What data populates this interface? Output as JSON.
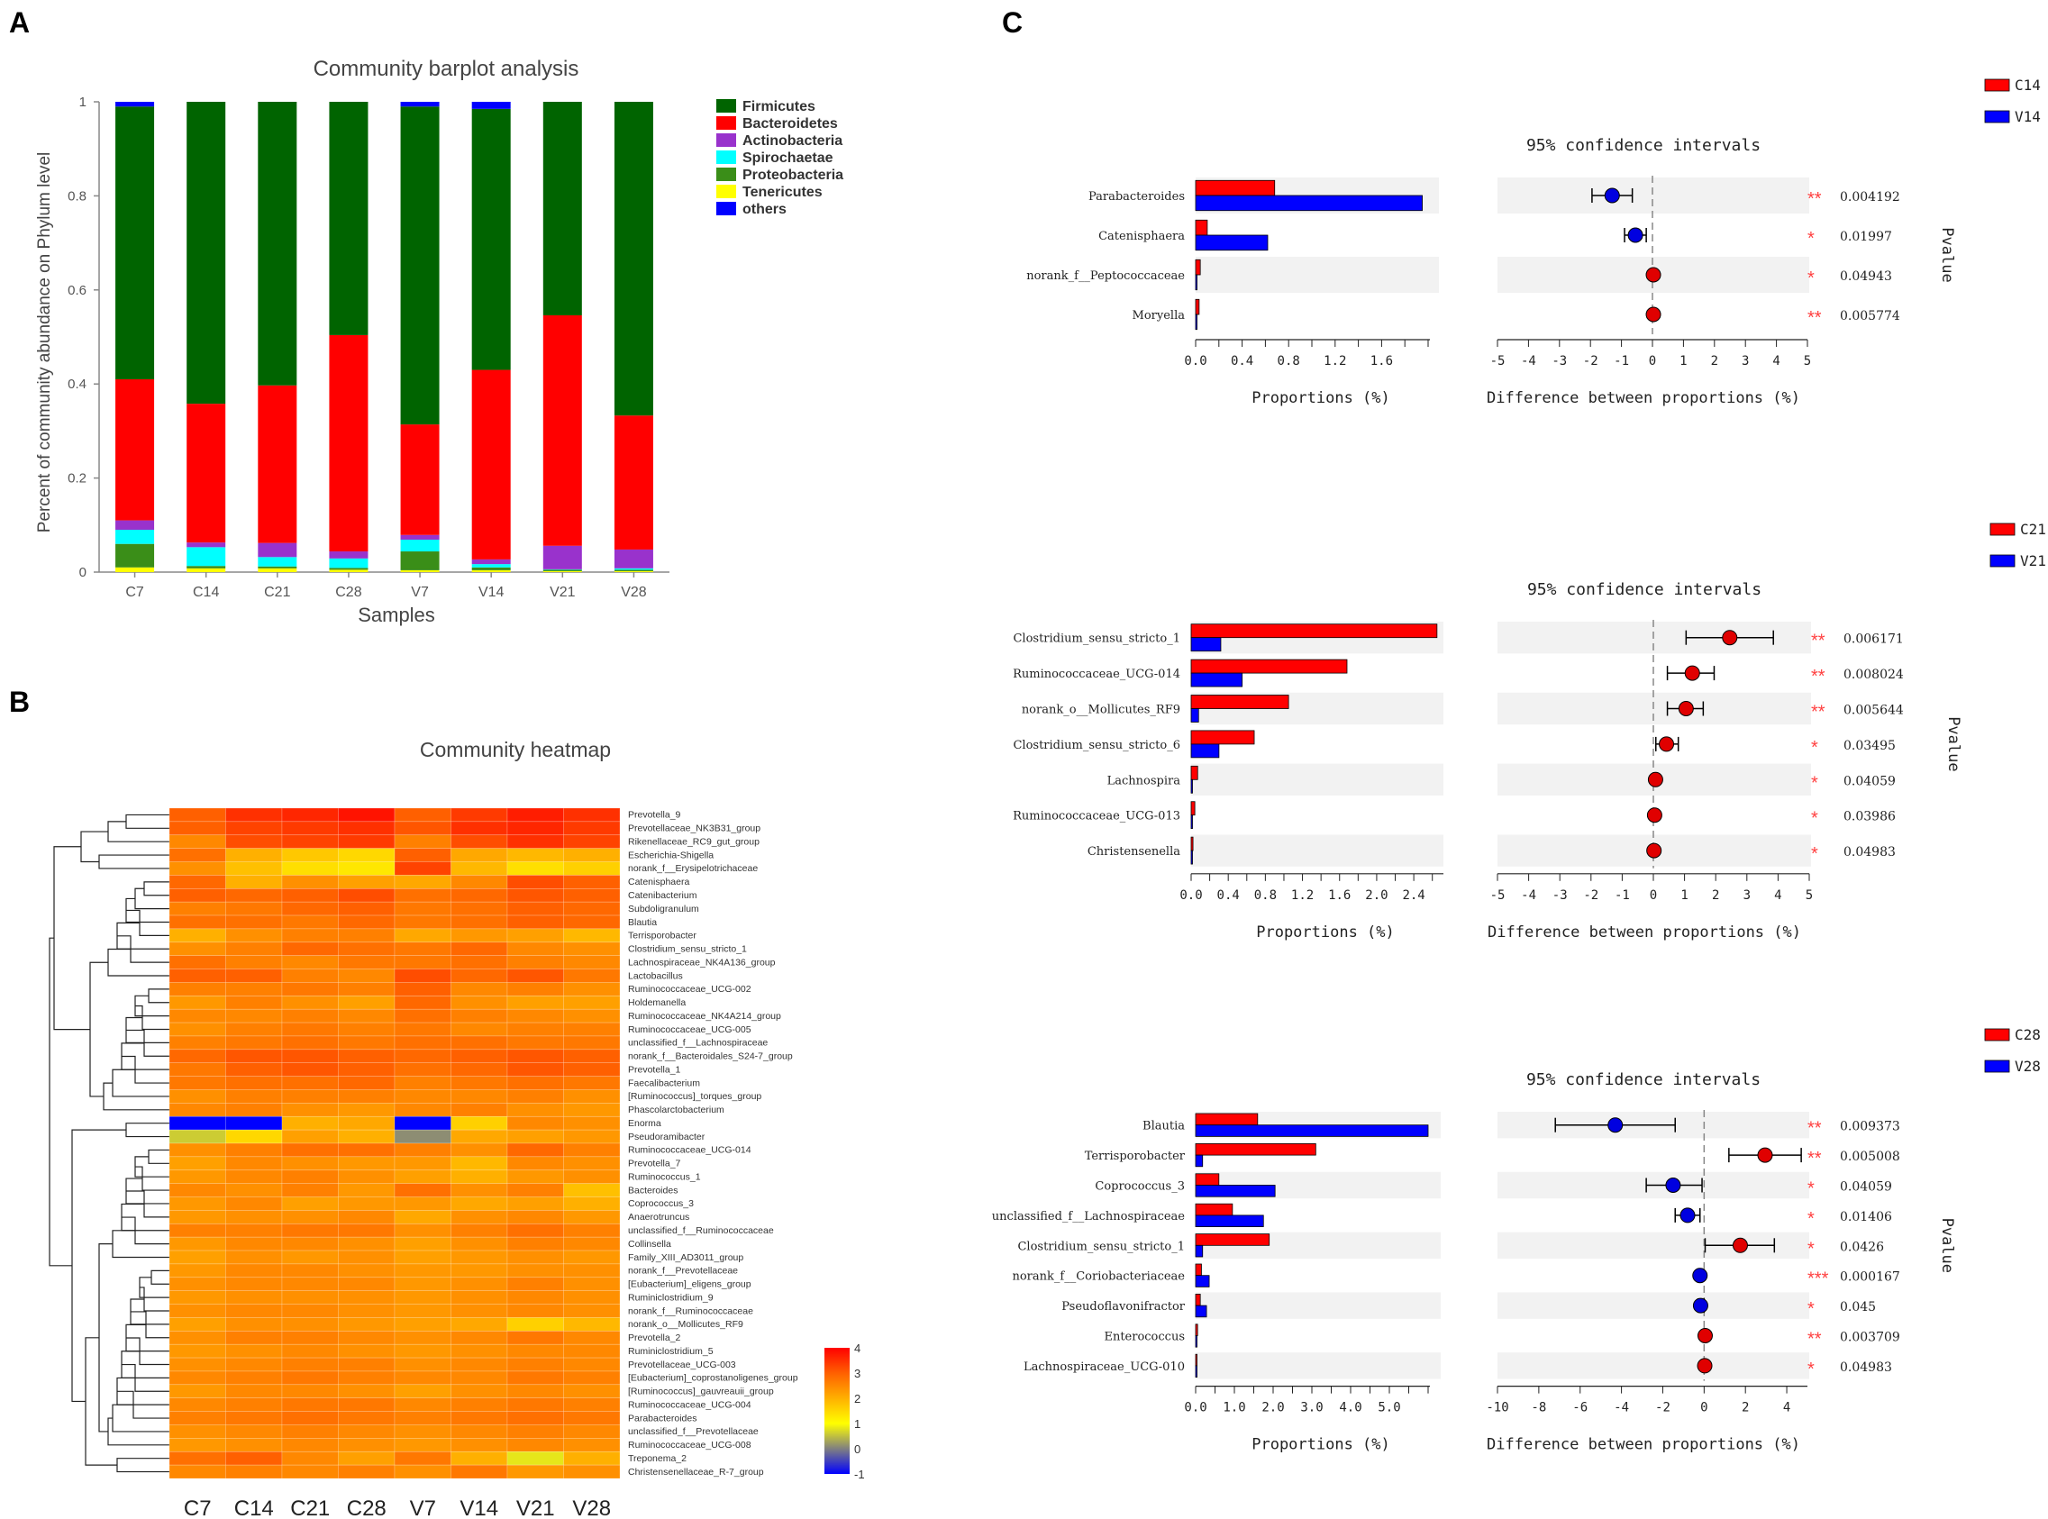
{
  "panel_labels": {
    "a": "A",
    "b": "B",
    "c": "C"
  },
  "colors": {
    "firmicutes": "#006400",
    "bacteroidetes": "#FF0000",
    "actinobacteria": "#9932CC",
    "spirochaetae": "#00FFFF",
    "proteobacteria": "#3A8E18",
    "tenericutes": "#FFFF00",
    "others": "#0000FF",
    "red": "#FF0000",
    "blue": "#0000FF",
    "axis": "#888888"
  },
  "chart_data": [
    {
      "type": "bar",
      "id": "barplot",
      "title": "Community barplot analysis",
      "xlabel": "Samples",
      "ylabel": "Percent of community abundance on Phylum level",
      "ylim": [
        0,
        1
      ],
      "yticks": [
        "0",
        "0.2",
        "0.4",
        "0.6",
        "0.8",
        "1"
      ],
      "categories": [
        "C7",
        "C14",
        "C21",
        "C28",
        "V7",
        "V14",
        "V21",
        "V28"
      ],
      "series": [
        {
          "name": "Tenericutes",
          "color": "#FFFF00",
          "values": [
            0.01,
            0.008,
            0.008,
            0.005,
            0.004,
            0.004,
            0.002,
            0.002
          ]
        },
        {
          "name": "Proteobacteria",
          "color": "#3A8E18",
          "values": [
            0.05,
            0.005,
            0.004,
            0.004,
            0.04,
            0.006,
            0.003,
            0.003
          ]
        },
        {
          "name": "Spirochaetae",
          "color": "#00FFFF",
          "values": [
            0.03,
            0.04,
            0.02,
            0.02,
            0.025,
            0.007,
            0.001,
            0.003
          ]
        },
        {
          "name": "Actinobacteria",
          "color": "#9932CC",
          "values": [
            0.02,
            0.01,
            0.03,
            0.015,
            0.01,
            0.01,
            0.05,
            0.04
          ]
        },
        {
          "name": "Bacteroidetes",
          "color": "#FF0000",
          "values": [
            0.3,
            0.295,
            0.335,
            0.46,
            0.235,
            0.403,
            0.49,
            0.285
          ]
        },
        {
          "name": "Firmicutes",
          "color": "#006400",
          "values": [
            0.58,
            0.642,
            0.603,
            0.496,
            0.676,
            0.555,
            0.454,
            0.667
          ]
        },
        {
          "name": "others",
          "color": "#0000FF",
          "values": [
            0.01,
            0.0,
            0.0,
            0.0,
            0.01,
            0.015,
            0.0,
            0.0
          ]
        }
      ],
      "legend": [
        "Firmicutes",
        "Bacteroidetes",
        "Actinobacteria",
        "Spirochaetae",
        "Proteobacteria",
        "Tenericutes",
        "others"
      ]
    },
    {
      "type": "heatmap",
      "id": "heatmap",
      "title": "Community heatmap",
      "columns": [
        "C7",
        "C14",
        "C21",
        "C28",
        "V7",
        "V14",
        "V21",
        "V28"
      ],
      "rows": [
        "Prevotella_9",
        "Prevotellaceae_NK3B31_group",
        "Rikenellaceae_RC9_gut_group",
        "Escherichia-Shigella",
        "norank_f__Erysipelotrichaceae",
        "Catenisphaera",
        "Catenibacterium",
        "Subdoligranulum",
        "Blautia",
        "Terrisporobacter",
        "Clostridium_sensu_stricto_1",
        "Lachnospiraceae_NK4A136_group",
        "Lactobacillus",
        "Ruminococcaceae_UCG-002",
        "Holdemanella",
        "Ruminococcaceae_NK4A214_group",
        "Ruminococcaceae_UCG-005",
        "unclassified_f__Lachnospiraceae",
        "norank_f__Bacteroidales_S24-7_group",
        "Prevotella_1",
        "Faecalibacterium",
        "[Ruminococcus]_torques_group",
        "Phascolarctobacterium",
        "Enorma",
        "Pseudoramibacter",
        "Ruminococcaceae_UCG-014",
        "Prevotella_7",
        "Ruminococcus_1",
        "Bacteroides",
        "Coprococcus_3",
        "Anaerotruncus",
        "unclassified_f__Ruminococcaceae",
        "Collinsella",
        "Family_XIII_AD3011_group",
        "norank_f__Prevotellaceae",
        "[Eubacterium]_eligens_group",
        "Ruminiclostridium_9",
        "norank_f__Ruminococcaceae",
        "norank_o__Mollicutes_RF9",
        "Prevotella_2",
        "Ruminiclostridium_5",
        "Prevotellaceae_UCG-003",
        "[Eubacterium]_coprostanoligenes_group",
        "[Ruminococcus]_gauvreauii_group",
        "Ruminococcaceae_UCG-004",
        "Parabacteroides",
        "unclassified_f__Prevotellaceae",
        "Ruminococcaceae_UCG-008",
        "Treponema_2",
        "Christensenellaceae_R-7_group"
      ],
      "values": [
        [
          3.0,
          3.5,
          3.6,
          3.8,
          3.0,
          3.4,
          3.7,
          3.5
        ],
        [
          3.0,
          3.3,
          3.4,
          3.5,
          3.1,
          3.5,
          3.6,
          3.4
        ],
        [
          2.5,
          3.2,
          3.3,
          3.4,
          2.6,
          3.2,
          3.5,
          3.3
        ],
        [
          2.8,
          2.0,
          1.7,
          1.5,
          3.0,
          2.1,
          1.9,
          2.0
        ],
        [
          2.4,
          1.8,
          1.4,
          1.3,
          3.3,
          1.9,
          1.4,
          1.6
        ],
        [
          2.9,
          2.0,
          2.4,
          2.2,
          2.1,
          2.5,
          3.2,
          3.0
        ],
        [
          3.0,
          2.9,
          3.0,
          3.2,
          2.8,
          2.9,
          3.1,
          3.0
        ],
        [
          2.6,
          2.7,
          2.9,
          3.0,
          2.7,
          2.8,
          3.0,
          2.9
        ],
        [
          2.8,
          2.8,
          2.7,
          2.9,
          2.7,
          2.8,
          3.0,
          2.9
        ],
        [
          2.0,
          2.4,
          2.6,
          2.6,
          2.1,
          2.3,
          2.2,
          1.9
        ],
        [
          2.4,
          2.6,
          2.9,
          2.8,
          2.7,
          2.9,
          2.5,
          2.4
        ],
        [
          2.8,
          2.6,
          2.5,
          2.7,
          2.7,
          2.8,
          2.6,
          2.5
        ],
        [
          3.0,
          3.0,
          2.6,
          2.5,
          3.2,
          2.9,
          3.1,
          2.7
        ],
        [
          2.6,
          2.6,
          2.7,
          2.6,
          3.0,
          2.5,
          2.6,
          2.4
        ],
        [
          2.3,
          2.6,
          2.4,
          2.2,
          2.9,
          2.4,
          2.2,
          2.2
        ],
        [
          2.5,
          2.5,
          2.6,
          2.5,
          2.8,
          2.6,
          2.5,
          2.4
        ],
        [
          2.4,
          2.6,
          2.7,
          2.6,
          2.7,
          2.5,
          2.6,
          2.6
        ],
        [
          2.6,
          2.7,
          2.8,
          2.7,
          2.8,
          2.8,
          2.7,
          2.7
        ],
        [
          2.9,
          3.1,
          3.1,
          3.0,
          2.9,
          3.0,
          3.1,
          3.0
        ],
        [
          2.7,
          3.0,
          3.1,
          3.0,
          2.8,
          2.9,
          3.1,
          3.0
        ],
        [
          2.7,
          2.8,
          2.8,
          2.9,
          2.6,
          2.7,
          2.8,
          2.7
        ],
        [
          2.4,
          2.6,
          2.6,
          2.6,
          2.5,
          2.5,
          2.6,
          2.4
        ],
        [
          2.5,
          2.6,
          2.4,
          2.3,
          2.5,
          2.6,
          2.4,
          2.3
        ],
        [
          -1.0,
          -1.0,
          2.0,
          2.1,
          -1.0,
          1.6,
          2.5,
          2.4
        ],
        [
          0.6,
          1.5,
          2.2,
          2.0,
          0.1,
          2.1,
          2.2,
          2.3
        ],
        [
          2.4,
          2.6,
          2.8,
          2.8,
          2.6,
          2.4,
          2.9,
          2.6
        ],
        [
          2.2,
          2.5,
          2.4,
          2.3,
          2.3,
          1.9,
          2.5,
          2.4
        ],
        [
          2.3,
          2.5,
          2.6,
          2.4,
          2.2,
          2.0,
          2.3,
          2.4
        ],
        [
          2.5,
          2.4,
          2.6,
          2.3,
          2.8,
          2.4,
          2.6,
          1.8
        ],
        [
          2.3,
          2.5,
          2.2,
          2.3,
          2.3,
          2.1,
          2.2,
          2.0
        ],
        [
          2.3,
          2.4,
          2.4,
          2.5,
          2.1,
          2.4,
          2.5,
          2.3
        ],
        [
          2.6,
          2.6,
          2.7,
          2.7,
          2.4,
          2.6,
          2.8,
          2.6
        ],
        [
          2.3,
          2.5,
          2.5,
          2.4,
          2.2,
          2.4,
          2.6,
          2.5
        ],
        [
          2.2,
          2.4,
          2.3,
          2.4,
          2.2,
          2.3,
          2.4,
          2.3
        ],
        [
          2.3,
          2.5,
          2.5,
          2.4,
          2.3,
          2.3,
          2.4,
          2.4
        ],
        [
          2.4,
          2.5,
          2.5,
          2.5,
          2.3,
          2.4,
          2.6,
          2.4
        ],
        [
          2.3,
          2.4,
          2.4,
          2.4,
          2.3,
          2.4,
          2.5,
          2.4
        ],
        [
          2.4,
          2.5,
          2.5,
          2.4,
          2.3,
          2.4,
          2.5,
          2.4
        ],
        [
          2.2,
          2.4,
          2.4,
          2.3,
          2.2,
          2.1,
          1.6,
          1.9
        ],
        [
          2.4,
          2.6,
          2.6,
          2.5,
          2.4,
          2.5,
          2.7,
          2.5
        ],
        [
          2.3,
          2.4,
          2.5,
          2.4,
          2.3,
          2.4,
          2.5,
          2.5
        ],
        [
          2.4,
          2.5,
          2.6,
          2.6,
          2.4,
          2.5,
          2.6,
          2.5
        ],
        [
          2.5,
          2.6,
          2.7,
          2.6,
          2.5,
          2.5,
          2.7,
          2.6
        ],
        [
          2.3,
          2.5,
          2.5,
          2.4,
          2.2,
          2.4,
          2.5,
          2.4
        ],
        [
          2.5,
          2.6,
          2.7,
          2.7,
          2.5,
          2.6,
          2.7,
          2.6
        ],
        [
          2.6,
          2.7,
          2.8,
          2.7,
          2.6,
          2.7,
          2.8,
          2.7
        ],
        [
          2.4,
          2.5,
          2.6,
          2.5,
          2.4,
          2.5,
          2.6,
          2.5
        ],
        [
          2.3,
          2.4,
          2.5,
          2.4,
          2.3,
          2.4,
          2.5,
          2.4
        ],
        [
          2.8,
          3.0,
          2.5,
          2.2,
          2.7,
          2.0,
          0.8,
          2.0
        ],
        [
          2.5,
          2.6,
          2.5,
          2.6,
          2.4,
          2.7,
          2.3,
          2.4
        ]
      ],
      "colorbar": {
        "min": -1,
        "max": 4,
        "ticks": [
          "4",
          "3",
          "2",
          "1",
          "0",
          "-1"
        ]
      }
    },
    {
      "type": "extended_error_bar",
      "id": "c14",
      "legend": [
        "C14",
        "V14"
      ],
      "ci_title": "95% confidence intervals",
      "xlabel_left": "Proportions (%)",
      "xlabel_right": "Difference between proportions (%)",
      "pvalue_label": "Pvalue",
      "prop_max": 2.0,
      "prop_ticks": [
        "0.0",
        "0.4",
        "0.8",
        "1.2",
        "1.6"
      ],
      "diff_range": [
        -5,
        5
      ],
      "diff_ticks": [
        "-5",
        "-4",
        "-3",
        "-2",
        "-1",
        "0",
        "1",
        "2",
        "3",
        "4",
        "5"
      ],
      "rows": [
        {
          "taxon": "Parabacteroides",
          "group1": 0.68,
          "group2": 1.95,
          "diff": -1.3,
          "ci_low": -1.95,
          "ci_high": -0.65,
          "stars": "**",
          "p": "0.004192"
        },
        {
          "taxon": "Catenisphaera",
          "group1": 0.1,
          "group2": 0.62,
          "diff": -0.55,
          "ci_low": -0.9,
          "ci_high": -0.2,
          "stars": "*",
          "p": "0.01997"
        },
        {
          "taxon": "norank_f__Peptococcaceae",
          "group1": 0.04,
          "group2": 0.01,
          "diff": 0.03,
          "ci_low": 0.0,
          "ci_high": 0.06,
          "stars": "*",
          "p": "0.04943"
        },
        {
          "taxon": "Moryella",
          "group1": 0.03,
          "group2": 0.005,
          "diff": 0.03,
          "ci_low": 0.01,
          "ci_high": 0.05,
          "stars": "**",
          "p": "0.005774"
        }
      ]
    },
    {
      "type": "extended_error_bar",
      "id": "c21",
      "legend": [
        "C21",
        "V21"
      ],
      "ci_title": "95% confidence intervals",
      "xlabel_left": "Proportions (%)",
      "xlabel_right": "Difference between proportions (%)",
      "pvalue_label": "Pvalue",
      "prop_max": 2.7,
      "prop_ticks": [
        "0.0",
        "0.4",
        "0.8",
        "1.2",
        "1.6",
        "2.0",
        "2.4"
      ],
      "diff_range": [
        -5,
        5
      ],
      "diff_ticks": [
        "-5",
        "-4",
        "-3",
        "-2",
        "-1",
        "0",
        "1",
        "2",
        "3",
        "4",
        "5"
      ],
      "rows": [
        {
          "taxon": "Clostridium_sensu_stricto_1",
          "group1": 2.65,
          "group2": 0.32,
          "diff": 2.45,
          "ci_low": 1.05,
          "ci_high": 3.85,
          "stars": "**",
          "p": "0.006171"
        },
        {
          "taxon": "Ruminococcaceae_UCG-014",
          "group1": 1.68,
          "group2": 0.55,
          "diff": 1.25,
          "ci_low": 0.45,
          "ci_high": 1.95,
          "stars": "**",
          "p": "0.008024"
        },
        {
          "taxon": "norank_o__Mollicutes_RF9",
          "group1": 1.05,
          "group2": 0.08,
          "diff": 1.05,
          "ci_low": 0.45,
          "ci_high": 1.6,
          "stars": "**",
          "p": "0.005644"
        },
        {
          "taxon": "Clostridium_sensu_stricto_6",
          "group1": 0.68,
          "group2": 0.3,
          "diff": 0.42,
          "ci_low": 0.08,
          "ci_high": 0.8,
          "stars": "*",
          "p": "0.03495"
        },
        {
          "taxon": "Lachnospira",
          "group1": 0.07,
          "group2": 0.01,
          "diff": 0.07,
          "ci_low": 0.0,
          "ci_high": 0.13,
          "stars": "*",
          "p": "0.04059"
        },
        {
          "taxon": "Ruminococcaceae_UCG-013",
          "group1": 0.04,
          "group2": 0.01,
          "diff": 0.04,
          "ci_low": 0.0,
          "ci_high": 0.08,
          "stars": "*",
          "p": "0.03986"
        },
        {
          "taxon": "Christensenella",
          "group1": 0.02,
          "group2": 0.005,
          "diff": 0.02,
          "ci_low": 0.0,
          "ci_high": 0.04,
          "stars": "*",
          "p": "0.04983"
        }
      ]
    },
    {
      "type": "extended_error_bar",
      "id": "c28",
      "legend": [
        "C28",
        "V28"
      ],
      "ci_title": "95% confidence intervals",
      "xlabel_left": "Proportions (%)",
      "xlabel_right": "Difference between proportions (%)",
      "pvalue_label": "Pvalue",
      "prop_max": 6.0,
      "prop_ticks": [
        "0.0",
        "1.0",
        "2.0",
        "3.0",
        "4.0",
        "5.0"
      ],
      "diff_range": [
        -10,
        5
      ],
      "diff_ticks": [
        "-10",
        "-8",
        "-6",
        "-4",
        "-2",
        "0",
        "2",
        "4"
      ],
      "rows": [
        {
          "taxon": "Blautia",
          "group1": 1.6,
          "group2": 6.0,
          "diff": -4.3,
          "ci_low": -7.2,
          "ci_high": -1.4,
          "stars": "**",
          "p": "0.009373"
        },
        {
          "taxon": "Terrisporobacter",
          "group1": 3.1,
          "group2": 0.18,
          "diff": 2.95,
          "ci_low": 1.2,
          "ci_high": 4.7,
          "stars": "**",
          "p": "0.005008"
        },
        {
          "taxon": "Coprococcus_3",
          "group1": 0.6,
          "group2": 2.05,
          "diff": -1.5,
          "ci_low": -2.8,
          "ci_high": -0.1,
          "stars": "*",
          "p": "0.04059"
        },
        {
          "taxon": "unclassified_f__Lachnospiraceae",
          "group1": 0.95,
          "group2": 1.75,
          "diff": -0.8,
          "ci_low": -1.4,
          "ci_high": -0.2,
          "stars": "*",
          "p": "0.01406"
        },
        {
          "taxon": "Clostridium_sensu_stricto_1",
          "group1": 1.9,
          "group2": 0.18,
          "diff": 1.75,
          "ci_low": 0.05,
          "ci_high": 3.4,
          "stars": "*",
          "p": "0.0426"
        },
        {
          "taxon": "norank_f__Coriobacteriaceae",
          "group1": 0.15,
          "group2": 0.35,
          "diff": -0.2,
          "ci_low": -0.3,
          "ci_high": -0.1,
          "stars": "***",
          "p": "0.000167"
        },
        {
          "taxon": "Pseudoflavonifractor",
          "group1": 0.12,
          "group2": 0.28,
          "diff": -0.17,
          "ci_low": -0.3,
          "ci_high": 0.0,
          "stars": "*",
          "p": "0.045"
        },
        {
          "taxon": "Enterococcus",
          "group1": 0.05,
          "group2": 0.01,
          "diff": 0.05,
          "ci_low": 0.02,
          "ci_high": 0.08,
          "stars": "**",
          "p": "0.003709"
        },
        {
          "taxon": "Lachnospiraceae_UCG-010",
          "group1": 0.03,
          "group2": 0.005,
          "diff": 0.03,
          "ci_low": 0.0,
          "ci_high": 0.06,
          "stars": "*",
          "p": "0.04983"
        }
      ]
    }
  ]
}
